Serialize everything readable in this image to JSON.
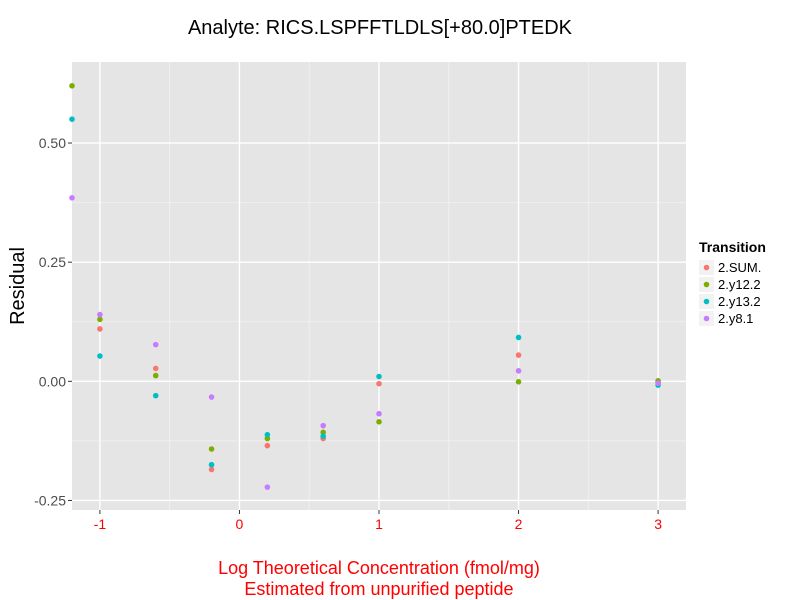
{
  "chart_data": {
    "type": "scatter",
    "title": "Analyte: RICS.LSPFFTLDLS[+80.0]PTEDK",
    "ylabel": "Residual",
    "xlabel_lines": [
      "Log Theoretical Concentration (fmol/mg)",
      "Estimated from unpurified peptide"
    ],
    "xlim": [
      -1.2,
      3.2
    ],
    "ylim": [
      -0.27,
      0.67
    ],
    "x_ticks": [
      {
        "value": -1,
        "label": "-1"
      },
      {
        "value": 0,
        "label": "0"
      },
      {
        "value": 1,
        "label": "1"
      },
      {
        "value": 2,
        "label": "2"
      },
      {
        "value": 3,
        "label": "3"
      }
    ],
    "y_ticks": [
      {
        "value": -0.25,
        "label": "-0.25"
      },
      {
        "value": 0.0,
        "label": "0.00"
      },
      {
        "value": 0.25,
        "label": "0.25"
      },
      {
        "value": 0.5,
        "label": "0.50"
      }
    ],
    "legend_title": "Transition",
    "series": [
      {
        "name": "2.SUM.",
        "color": "#F8766D",
        "points": [
          [
            -1.0,
            0.11
          ],
          [
            -0.6,
            0.027
          ],
          [
            -0.2,
            -0.185
          ],
          [
            0.2,
            -0.135
          ],
          [
            0.6,
            -0.12
          ],
          [
            1.0,
            -0.005
          ],
          [
            2.0,
            0.055
          ],
          [
            3.0,
            -0.003
          ]
        ]
      },
      {
        "name": "2.y12.2",
        "color": "#7CAE00",
        "points": [
          [
            -1.2,
            0.62
          ],
          [
            -1.0,
            0.13
          ],
          [
            -0.6,
            0.012
          ],
          [
            -0.2,
            -0.142
          ],
          [
            0.2,
            -0.12
          ],
          [
            0.6,
            -0.107
          ],
          [
            1.0,
            -0.085
          ],
          [
            2.0,
            -0.001
          ],
          [
            3.0,
            0.001
          ]
        ]
      },
      {
        "name": "2.y13.2",
        "color": "#00BFC4",
        "points": [
          [
            -1.2,
            0.55
          ],
          [
            -1.0,
            0.053
          ],
          [
            -0.6,
            -0.03
          ],
          [
            -0.2,
            -0.175
          ],
          [
            0.2,
            -0.112
          ],
          [
            0.6,
            -0.115
          ],
          [
            1.0,
            0.01
          ],
          [
            2.0,
            0.092
          ],
          [
            3.0,
            -0.008
          ]
        ]
      },
      {
        "name": "2.y8.1",
        "color": "#C77CFF",
        "points": [
          [
            -1.2,
            0.385
          ],
          [
            -1.0,
            0.14
          ],
          [
            -0.6,
            0.077
          ],
          [
            -0.2,
            -0.033
          ],
          [
            0.2,
            -0.222
          ],
          [
            0.6,
            -0.093
          ],
          [
            1.0,
            -0.068
          ],
          [
            2.0,
            0.022
          ],
          [
            3.0,
            -0.004
          ]
        ]
      }
    ]
  },
  "colors": {
    "panel_background": "#E5E5E5",
    "grid_major": "#FFFFFF",
    "grid_minor": "#F2F2F2",
    "x_axis_text": "#FF0000",
    "x_title_text": "#FF0000"
  }
}
